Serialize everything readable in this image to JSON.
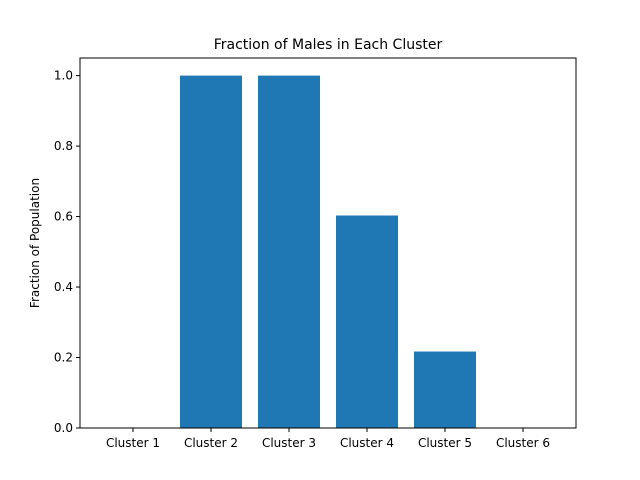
{
  "chart_data": {
    "type": "bar",
    "title": "Fraction of Males in Each Cluster",
    "xlabel": "",
    "ylabel": "Fraction of Population",
    "categories": [
      "Cluster 1",
      "Cluster 2",
      "Cluster 3",
      "Cluster 4",
      "Cluster 5",
      "Cluster 6"
    ],
    "values": [
      0.0,
      1.0,
      1.0,
      0.603,
      0.217,
      0.0
    ],
    "ylim": [
      0,
      1.05
    ],
    "yticks": [
      "0.0",
      "0.2",
      "0.4",
      "0.6",
      "0.8",
      "1.0"
    ],
    "grid": false,
    "bar_color": "#1f77b4"
  }
}
